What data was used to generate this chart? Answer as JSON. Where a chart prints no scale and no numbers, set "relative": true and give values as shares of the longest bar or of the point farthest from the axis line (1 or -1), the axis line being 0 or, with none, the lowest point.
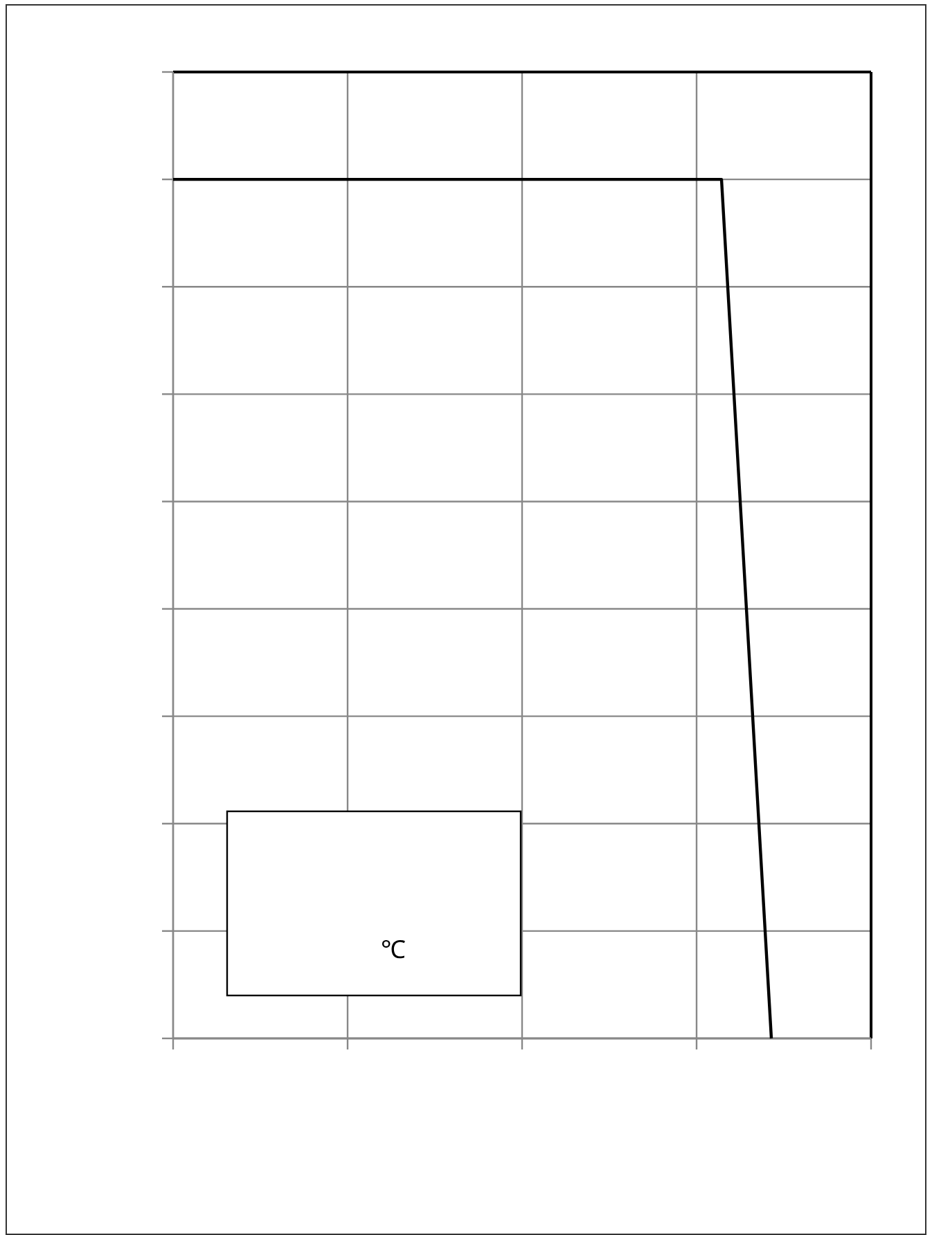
{
  "chart_data": {
    "type": "line",
    "relative": true,
    "categories": [
      null,
      null,
      null,
      null,
      null,
      null,
      null,
      null,
      null,
      null,
      null,
      null,
      null,
      null,
      null,
      null,
      null,
      null,
      null,
      null,
      null,
      null,
      null,
      null,
      null
    ],
    "values": [
      1,
      1,
      1,
      1,
      1,
      1,
      1,
      1,
      1,
      1,
      1,
      1,
      1,
      1,
      1,
      1,
      1,
      1,
      1,
      1,
      1,
      1,
      1,
      0.5,
      0
    ],
    "color": "#000000",
    "line_style": "solid",
    "marker": "none",
    "grid": true,
    "annotations": [
      "℃"
    ]
  }
}
